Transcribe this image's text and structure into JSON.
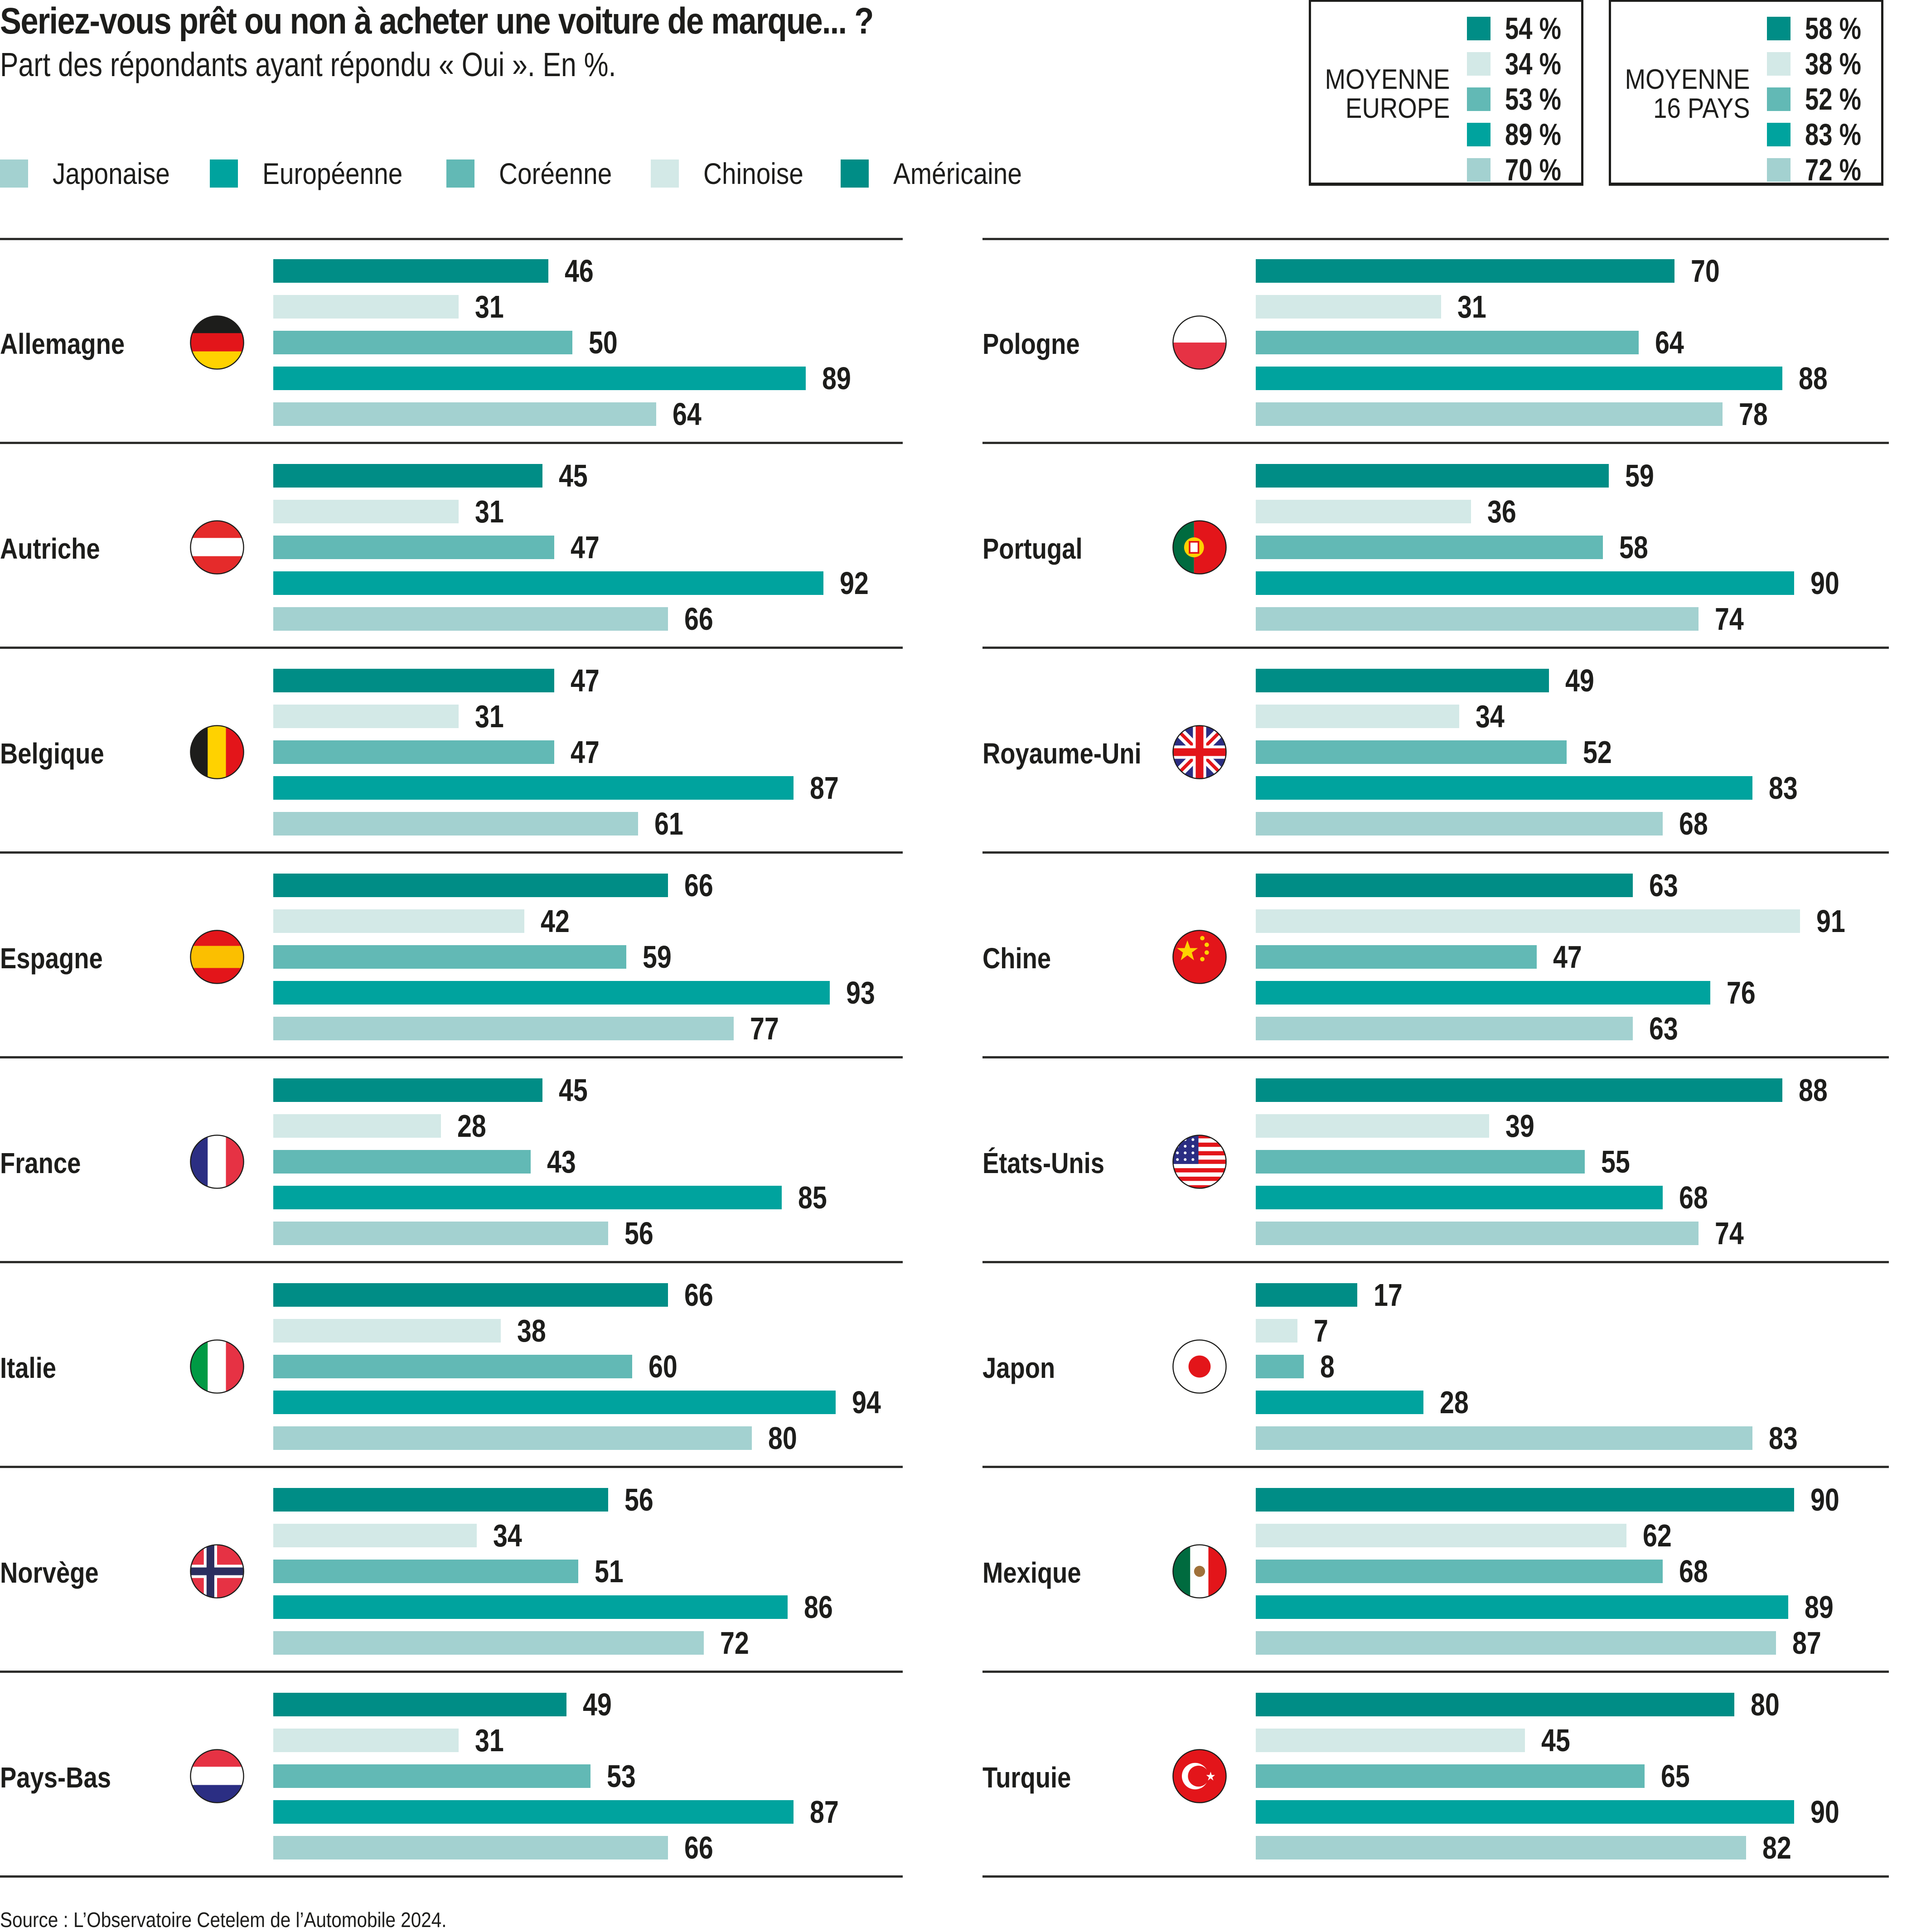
{
  "chart_data": {
    "type": "bar",
    "orientation": "horizontal",
    "title": "Seriez-vous prêt ou non à acheter une voiture de marque... ?",
    "subtitle": "Part des répondants ayant répondu « Oui ». En %.",
    "unit": "%",
    "xlim": [
      0,
      100
    ],
    "grid": false,
    "legend_position": "top-left",
    "legend": [
      {
        "key": "japonaise",
        "label": "Japonaise",
        "color": "#a3d1d0"
      },
      {
        "key": "europeenne",
        "label": "Européenne",
        "color": "#00a39e"
      },
      {
        "key": "coreenne",
        "label": "Coréenne",
        "color": "#62b9b5"
      },
      {
        "key": "chinoise",
        "label": "Chinoise",
        "color": "#d3e9e7"
      },
      {
        "key": "americaine",
        "label": "Américaine",
        "color": "#008d86"
      }
    ],
    "bar_order": [
      "americaine",
      "chinoise",
      "coreenne",
      "europeenne",
      "japonaise"
    ],
    "averages": [
      {
        "title_line1": "MOYENNE",
        "title_line2": "EUROPE",
        "values": {
          "americaine": 54,
          "chinoise": 34,
          "coreenne": 53,
          "europeenne": 89,
          "japonaise": 70
        }
      },
      {
        "title_line1": "MOYENNE",
        "title_line2": "16 PAYS",
        "values": {
          "americaine": 58,
          "chinoise": 38,
          "coreenne": 52,
          "europeenne": 83,
          "japonaise": 72
        }
      }
    ],
    "panels": [
      {
        "countries": [
          {
            "name": "Allemagne",
            "flag": "germany-flag",
            "values": {
              "americaine": 46,
              "chinoise": 31,
              "coreenne": 50,
              "europeenne": 89,
              "japonaise": 64
            }
          },
          {
            "name": "Autriche",
            "flag": "austria-flag",
            "values": {
              "americaine": 45,
              "chinoise": 31,
              "coreenne": 47,
              "europeenne": 92,
              "japonaise": 66
            }
          },
          {
            "name": "Belgique",
            "flag": "belgium-flag",
            "values": {
              "americaine": 47,
              "chinoise": 31,
              "coreenne": 47,
              "europeenne": 87,
              "japonaise": 61
            }
          },
          {
            "name": "Espagne",
            "flag": "spain-flag",
            "values": {
              "americaine": 66,
              "chinoise": 42,
              "coreenne": 59,
              "europeenne": 93,
              "japonaise": 77
            }
          },
          {
            "name": "France",
            "flag": "france-flag",
            "values": {
              "americaine": 45,
              "chinoise": 28,
              "coreenne": 43,
              "europeenne": 85,
              "japonaise": 56
            }
          },
          {
            "name": "Italie",
            "flag": "italy-flag",
            "values": {
              "americaine": 66,
              "chinoise": 38,
              "coreenne": 60,
              "europeenne": 94,
              "japonaise": 80
            }
          },
          {
            "name": "Norvège",
            "flag": "norway-flag",
            "values": {
              "americaine": 56,
              "chinoise": 34,
              "coreenne": 51,
              "europeenne": 86,
              "japonaise": 72
            }
          },
          {
            "name": "Pays-Bas",
            "flag": "netherlands-flag",
            "values": {
              "americaine": 49,
              "chinoise": 31,
              "coreenne": 53,
              "europeenne": 87,
              "japonaise": 66
            }
          }
        ]
      },
      {
        "countries": [
          {
            "name": "Pologne",
            "flag": "poland-flag",
            "values": {
              "americaine": 70,
              "chinoise": 31,
              "coreenne": 64,
              "europeenne": 88,
              "japonaise": 78
            }
          },
          {
            "name": "Portugal",
            "flag": "portugal-flag",
            "values": {
              "americaine": 59,
              "chinoise": 36,
              "coreenne": 58,
              "europeenne": 90,
              "japonaise": 74
            }
          },
          {
            "name": "Royaume-Uni",
            "flag": "uk-flag",
            "values": {
              "americaine": 49,
              "chinoise": 34,
              "coreenne": 52,
              "europeenne": 83,
              "japonaise": 68
            }
          },
          {
            "name": "Chine",
            "flag": "china-flag",
            "values": {
              "americaine": 63,
              "chinoise": 91,
              "coreenne": 47,
              "europeenne": 76,
              "japonaise": 63
            }
          },
          {
            "name": "États-Unis",
            "flag": "usa-flag",
            "values": {
              "americaine": 88,
              "chinoise": 39,
              "coreenne": 55,
              "europeenne": 68,
              "japonaise": 74
            }
          },
          {
            "name": "Japon",
            "flag": "japan-flag",
            "values": {
              "americaine": 17,
              "chinoise": 7,
              "coreenne": 8,
              "europeenne": 28,
              "japonaise": 83
            }
          },
          {
            "name": "Mexique",
            "flag": "mexico-flag",
            "values": {
              "americaine": 90,
              "chinoise": 62,
              "coreenne": 68,
              "europeenne": 89,
              "japonaise": 87
            }
          },
          {
            "name": "Turquie",
            "flag": "turkey-flag",
            "values": {
              "americaine": 80,
              "chinoise": 45,
              "coreenne": 65,
              "europeenne": 90,
              "japonaise": 82
            }
          }
        ]
      }
    ],
    "source": "Source : L’Observatoire Cetelem de l’Automobile 2024."
  },
  "avg_suffix": " %"
}
